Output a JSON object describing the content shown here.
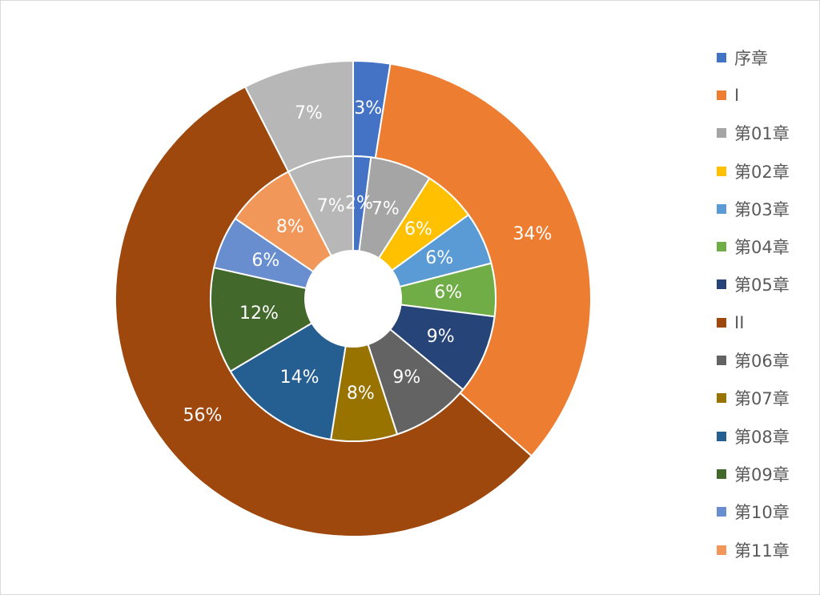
{
  "chart_data": {
    "type": "pie",
    "title": "",
    "legend_position": "right",
    "legend": [
      {
        "label": "序章",
        "color": "#4472C4"
      },
      {
        "label": "I",
        "color": "#ED7D31"
      },
      {
        "label": "第01章",
        "color": "#A5A5A5"
      },
      {
        "label": "第02章",
        "color": "#FFC000"
      },
      {
        "label": "第03章",
        "color": "#5B9BD5"
      },
      {
        "label": "第04章",
        "color": "#70AD47"
      },
      {
        "label": "第05章",
        "color": "#264478"
      },
      {
        "label": "II",
        "color": "#9E480E"
      },
      {
        "label": "第06章",
        "color": "#636363"
      },
      {
        "label": "第07章",
        "color": "#997300"
      },
      {
        "label": "第08章",
        "color": "#255E91"
      },
      {
        "label": "第09章",
        "color": "#43682B"
      },
      {
        "label": "第10章",
        "color": "#698ED0"
      },
      {
        "label": "第11章",
        "color": "#F1975A"
      }
    ],
    "series": [
      {
        "ring": "outer",
        "slices": [
          {
            "category": "序章",
            "value": 2.5,
            "label": "3%",
            "color": "#4472C4"
          },
          {
            "category": "I",
            "value": 34,
            "label": "34%",
            "color": "#ED7D31"
          },
          {
            "category": "II",
            "value": 56,
            "label": "56%",
            "color": "#9E480E"
          },
          {
            "category": "",
            "value": 7.5,
            "label": "7%",
            "color": "#B7B7B7"
          }
        ]
      },
      {
        "ring": "inner",
        "slices": [
          {
            "category": "序章",
            "value": 2,
            "label": "2%",
            "color": "#4472C4"
          },
          {
            "category": "第01章",
            "value": 7,
            "label": "7%",
            "color": "#A5A5A5"
          },
          {
            "category": "第02章",
            "value": 6,
            "label": "6%",
            "color": "#FFC000"
          },
          {
            "category": "第03章",
            "value": 6,
            "label": "6%",
            "color": "#5B9BD5"
          },
          {
            "category": "第04章",
            "value": 6,
            "label": "6%",
            "color": "#70AD47"
          },
          {
            "category": "第05章",
            "value": 9,
            "label": "9%",
            "color": "#264478"
          },
          {
            "category": "第06章",
            "value": 9,
            "label": "9%",
            "color": "#636363"
          },
          {
            "category": "第07章",
            "value": 7.5,
            "label": "8%",
            "color": "#997300"
          },
          {
            "category": "第08章",
            "value": 14,
            "label": "14%",
            "color": "#255E91"
          },
          {
            "category": "第09章",
            "value": 12,
            "label": "12%",
            "color": "#43682B"
          },
          {
            "category": "第10章",
            "value": 6,
            "label": "6%",
            "color": "#698ED0"
          },
          {
            "category": "第11章",
            "value": 8,
            "label": "8%",
            "color": "#F1975A"
          },
          {
            "category": "",
            "value": 7.5,
            "label": "7%",
            "color": "#B7B7B7"
          }
        ]
      }
    ]
  }
}
